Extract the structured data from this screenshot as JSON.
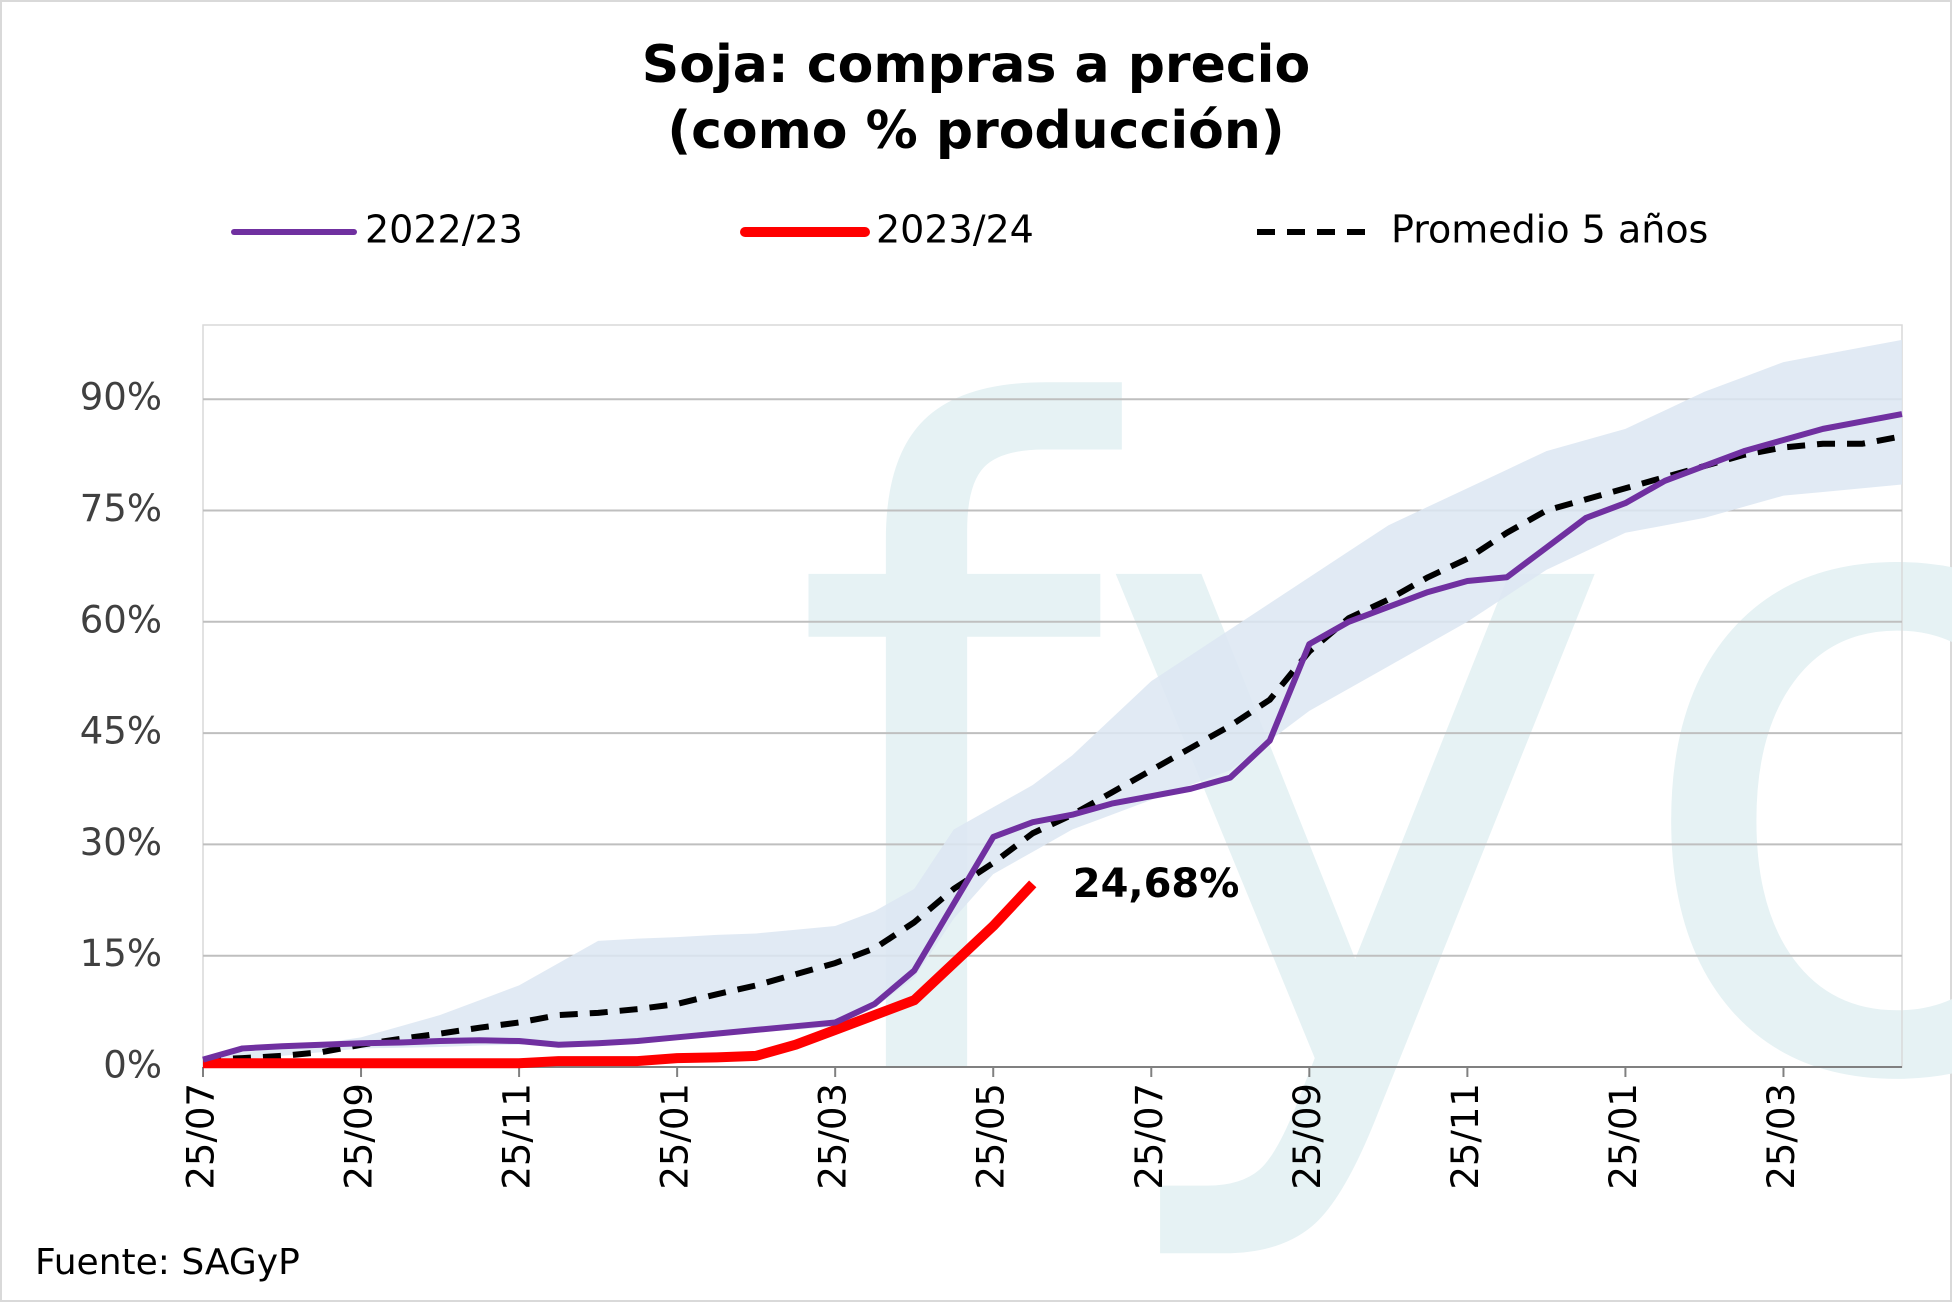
{
  "chart_data": {
    "type": "line",
    "title": [
      "Soja: compras a precio",
      "(como % producción)"
    ],
    "source": "Fuente:  SAGyP",
    "watermark": "fyo",
    "categories": [
      "25/07",
      null,
      null,
      null,
      "25/09",
      null,
      null,
      null,
      "25/11",
      null,
      null,
      null,
      "25/01",
      null,
      null,
      null,
      "25/03",
      null,
      null,
      null,
      "25/05",
      null,
      null,
      null,
      "25/07",
      null,
      null,
      null,
      "25/09",
      null,
      null,
      null,
      "25/11",
      null,
      null,
      null,
      "25/01",
      null,
      null,
      null,
      "25/03",
      null,
      null,
      null
    ],
    "ylim": [
      0,
      100
    ],
    "yticks": [
      {
        "value": 0,
        "label": "0%"
      },
      {
        "value": 15,
        "label": "15%"
      },
      {
        "value": 30,
        "label": "30%"
      },
      {
        "value": 45,
        "label": "45%"
      },
      {
        "value": 60,
        "label": "60%"
      },
      {
        "value": 75,
        "label": "75%"
      },
      {
        "value": 90,
        "label": "90%"
      }
    ],
    "grid": true,
    "band": {
      "color": "#dce6f2",
      "upper": [
        1.5,
        2,
        2.5,
        3.2,
        4,
        5.5,
        7,
        9,
        11,
        14,
        17,
        17.3,
        17.5,
        17.8,
        18,
        18.5,
        19,
        21,
        24,
        32,
        35,
        38,
        42,
        47,
        52,
        55.5,
        59,
        62.5,
        66,
        69.5,
        73,
        75.5,
        78,
        80.5,
        83,
        84.5,
        86,
        88.5,
        91,
        93,
        95,
        96,
        97,
        98
      ],
      "lower": [
        0.5,
        1,
        1.5,
        2,
        2.5,
        2.6,
        2.7,
        2.9,
        3,
        3.2,
        3.5,
        3.8,
        4,
        4.3,
        4.7,
        5,
        5.5,
        8,
        12,
        20,
        26,
        29,
        32,
        34,
        36,
        38,
        40,
        44,
        48,
        51,
        54,
        57,
        60,
        63.5,
        67,
        69.5,
        72,
        73,
        74,
        75.5,
        77,
        77.5,
        78,
        78.5
      ]
    },
    "series": [
      {
        "name": "2022/23",
        "color": "#7030a0",
        "width": 6,
        "dash": false,
        "values": [
          1,
          2.5,
          2.8,
          3,
          3.2,
          3.3,
          3.5,
          3.6,
          3.5,
          3,
          3.2,
          3.5,
          4,
          4.5,
          5,
          5.5,
          6,
          8.5,
          13,
          22,
          31,
          33,
          34,
          35.5,
          36.5,
          37.5,
          39,
          44,
          57,
          60,
          62,
          64,
          65.5,
          66,
          70,
          74,
          76,
          79,
          81,
          83,
          84.5,
          86,
          87,
          88
        ]
      },
      {
        "name": "2023/24",
        "color": "#ff0000",
        "width": 10,
        "dash": false,
        "values": [
          0.5,
          0.5,
          0.5,
          0.5,
          0.5,
          0.5,
          0.5,
          0.5,
          0.5,
          0.8,
          0.8,
          0.8,
          1.2,
          1.3,
          1.5,
          3,
          5,
          7,
          9,
          14,
          19,
          24.68,
          null,
          null,
          null,
          null,
          null,
          null,
          null,
          null,
          null,
          null,
          null,
          null,
          null,
          null,
          null,
          null,
          null,
          null,
          null,
          null,
          null,
          null
        ],
        "value_labels": [
          null,
          null,
          null,
          null,
          null,
          null,
          null,
          null,
          null,
          null,
          null,
          null,
          null,
          null,
          null,
          null,
          null,
          null,
          null,
          null,
          null,
          "24,68%",
          null,
          null,
          null,
          null,
          null,
          null,
          null,
          null,
          null,
          null,
          null,
          null,
          null,
          null,
          null,
          null,
          null,
          null,
          null,
          null,
          null,
          null
        ]
      },
      {
        "name": "Promedio 5 años",
        "color": "#000000",
        "width": 6,
        "dash": true,
        "values": [
          1,
          1.2,
          1.5,
          2,
          3,
          3.8,
          4.5,
          5.3,
          6,
          7,
          7.3,
          7.8,
          8.5,
          9.8,
          11,
          12.5,
          14,
          16,
          19.5,
          24,
          27.5,
          31.5,
          34,
          37,
          40,
          43,
          46,
          49.5,
          56,
          60.5,
          63,
          66,
          68.5,
          72,
          75,
          76.5,
          78,
          79.5,
          81,
          82.5,
          83.5,
          84,
          84,
          85
        ]
      }
    ]
  }
}
